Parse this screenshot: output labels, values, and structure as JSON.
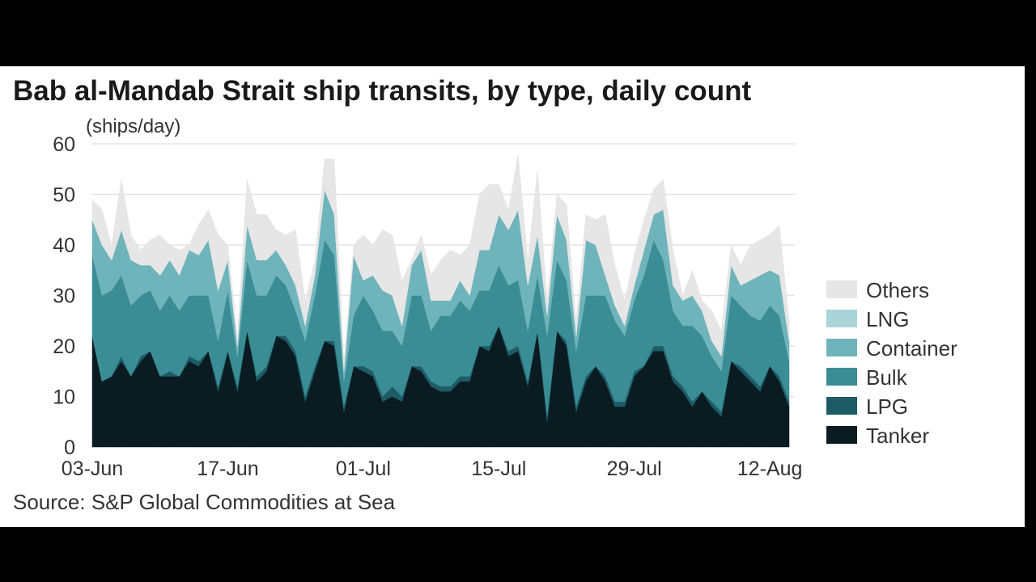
{
  "chart_data": {
    "type": "area",
    "stacked": true,
    "title": "Bab al-Mandab Strait ship transits, by type, daily count",
    "unit_label": "(ships/day)",
    "source": "Source: S&P Global Commodities at Sea",
    "ylim": [
      0,
      60
    ],
    "y_ticks": [
      "0",
      "10",
      "20",
      "30",
      "40",
      "50",
      "60"
    ],
    "x_ticks": [
      {
        "label": "03-Jun",
        "day": 0
      },
      {
        "label": "17-Jun",
        "day": 14
      },
      {
        "label": "01-Jul",
        "day": 28
      },
      {
        "label": "15-Jul",
        "day": 42
      },
      {
        "label": "29-Jul",
        "day": 56
      },
      {
        "label": "12-Aug",
        "day": 70
      }
    ],
    "grid": "horizontal",
    "legend_position": "right",
    "x_start": "03-Jun",
    "x_end": "12-Aug",
    "series": [
      {
        "name": "Tanker",
        "color": "#0a1c22",
        "values": [
          22,
          13,
          14,
          17,
          14,
          17,
          19,
          14,
          14,
          14,
          17,
          16,
          19,
          11,
          19,
          11,
          23,
          13,
          15,
          22,
          21,
          18,
          9,
          15,
          21,
          20,
          7,
          16,
          15,
          14,
          9,
          10,
          9,
          16,
          15,
          12,
          11,
          11,
          13,
          13,
          20,
          19,
          24,
          18,
          19,
          12,
          23,
          5,
          23,
          20,
          7,
          13,
          16,
          13,
          8,
          8,
          14,
          16,
          19,
          19,
          13,
          11,
          8,
          11,
          8,
          6,
          17,
          15,
          13,
          11,
          16,
          13,
          8
        ]
      },
      {
        "name": "LPG",
        "color": "#1d5c66",
        "values": [
          0,
          0,
          0,
          1,
          0,
          1,
          0,
          0,
          1,
          0,
          1,
          1,
          0,
          1,
          0,
          1,
          0,
          1,
          1,
          0,
          1,
          1,
          1,
          1,
          0,
          1,
          1,
          0,
          1,
          1,
          1,
          2,
          1,
          0,
          1,
          1,
          1,
          1,
          1,
          1,
          0,
          1,
          0,
          1,
          1,
          1,
          0,
          1,
          0,
          1,
          1,
          1,
          0,
          1,
          1,
          1,
          1,
          0,
          1,
          1,
          1,
          1,
          1,
          0,
          1,
          1,
          0,
          1,
          1,
          1,
          0,
          1,
          1
        ]
      },
      {
        "name": "Bulk",
        "color": "#3a8c95",
        "values": [
          16,
          17,
          17,
          16,
          14,
          12,
          12,
          13,
          15,
          13,
          12,
          13,
          11,
          9,
          12,
          6,
          14,
          16,
          14,
          12,
          10,
          8,
          11,
          14,
          20,
          17,
          5,
          10,
          14,
          12,
          13,
          11,
          10,
          14,
          14,
          10,
          14,
          14,
          15,
          13,
          11,
          11,
          12,
          13,
          13,
          10,
          11,
          16,
          14,
          12,
          11,
          16,
          14,
          16,
          16,
          13,
          14,
          18,
          21,
          17,
          13,
          12,
          15,
          11,
          9,
          8,
          13,
          12,
          12,
          13,
          12,
          12,
          8
        ]
      },
      {
        "name": "Container",
        "color": "#70b4bb",
        "values": [
          7,
          10,
          6,
          9,
          9,
          6,
          5,
          7,
          7,
          7,
          9,
          8,
          11,
          10,
          6,
          2,
          7,
          7,
          7,
          5,
          4,
          5,
          3,
          4,
          10,
          8,
          2,
          12,
          3,
          7,
          8,
          7,
          4,
          6,
          9,
          6,
          3,
          3,
          4,
          3,
          8,
          8,
          10,
          11,
          14,
          9,
          8,
          4,
          9,
          8,
          3,
          11,
          10,
          4,
          3,
          2,
          3,
          5,
          5,
          10,
          5,
          5,
          6,
          5,
          3,
          3,
          6,
          4,
          7,
          9,
          7,
          8,
          4
        ]
      },
      {
        "name": "LNG",
        "color": "#a9d4d8",
        "values": [
          0,
          0,
          0,
          0,
          0,
          0,
          0,
          0,
          0,
          0,
          0,
          0,
          0,
          0,
          0,
          0,
          0,
          0,
          0,
          0,
          0,
          0,
          0,
          0,
          0,
          0,
          0,
          0,
          0,
          0,
          0,
          0,
          0,
          0,
          0,
          0,
          0,
          0,
          0,
          0,
          0,
          0,
          0,
          0,
          0,
          0,
          0,
          0,
          0,
          0,
          0,
          0,
          0,
          0,
          0,
          0,
          0,
          0,
          0,
          0,
          0,
          0,
          0,
          0,
          0,
          0,
          0,
          0,
          0,
          0,
          0,
          0,
          0
        ]
      },
      {
        "name": "Others",
        "color": "#e6e6e6",
        "values": [
          4,
          7,
          3,
          10,
          5,
          3,
          5,
          8,
          3,
          5,
          1,
          6,
          6,
          11,
          3,
          2,
          9,
          9,
          9,
          4,
          6,
          11,
          5,
          3,
          6,
          11,
          2,
          2,
          9,
          6,
          12,
          12,
          9,
          1,
          3,
          5,
          8,
          10,
          5,
          10,
          11,
          13,
          6,
          4,
          11,
          5,
          13,
          3,
          4,
          7,
          3,
          5,
          5,
          12,
          8,
          5,
          6,
          6,
          5,
          6,
          7,
          1,
          5,
          2,
          6,
          5,
          4,
          4,
          7,
          7,
          7,
          10,
          4
        ]
      }
    ]
  }
}
